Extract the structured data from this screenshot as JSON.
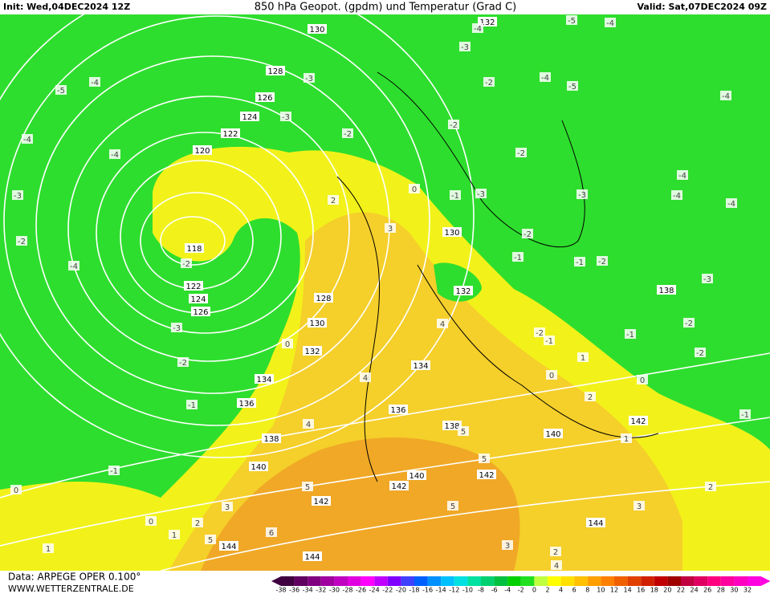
{
  "header": {
    "init": "Init: Wed,04DEC2024 12Z",
    "title": "850 hPa Geopot. (gpdm) und Temperatur (Grad C)",
    "valid": "Valid: Sat,07DEC2024 09Z"
  },
  "footer": {
    "data": "Data: ARPEGE OPER 0.100°",
    "site": "WWW.WETTERZENTRALE.DE"
  },
  "colorbar": {
    "ticks": [
      -38,
      -36,
      -34,
      -32,
      -30,
      -28,
      -26,
      -24,
      -22,
      -20,
      -18,
      -16,
      -14,
      -12,
      -10,
      -8,
      -6,
      -4,
      -2,
      0,
      2,
      4,
      6,
      8,
      10,
      12,
      14,
      16,
      18,
      20,
      22,
      24,
      26,
      28,
      30,
      32
    ],
    "colors": [
      "#400040",
      "#600060",
      "#800080",
      "#a000a0",
      "#c000c0",
      "#e000e0",
      "#ff00ff",
      "#c000ff",
      "#8000ff",
      "#4040ff",
      "#0060ff",
      "#0090ff",
      "#00c0ff",
      "#00e0e0",
      "#00e0a0",
      "#00d070",
      "#00c040",
      "#00d000",
      "#20e020",
      "#c0ff40",
      "#ffff00",
      "#ffe000",
      "#ffc000",
      "#ffa000",
      "#ff8000",
      "#f06000",
      "#e04000",
      "#d02000",
      "#c00000",
      "#a00000",
      "#c00040",
      "#e00060",
      "#ff0080",
      "#ff00a0",
      "#ff00c0",
      "#ff00e0"
    ]
  },
  "geopotential_labels": [
    130,
    128,
    126,
    124,
    122,
    120,
    118,
    122,
    124,
    126,
    128,
    130,
    132,
    134,
    136,
    138,
    140,
    130,
    132,
    134,
    136,
    138,
    140,
    142,
    142,
    142,
    140,
    142,
    138,
    144,
    144,
    144,
    132
  ],
  "temperature_labels": [
    -5,
    -4,
    -4,
    -3,
    -2,
    -4,
    -5,
    -4,
    -4,
    -5,
    -4,
    -3,
    -2,
    -4,
    -4,
    -3,
    -3,
    -2,
    -2,
    -2,
    -1,
    -3,
    -3,
    -4,
    -4,
    -4,
    -3,
    -2,
    -2,
    -1,
    -2,
    -1,
    -2,
    -1,
    -1,
    -3,
    -2,
    -1,
    -2,
    -1,
    -1,
    -2,
    0,
    0,
    0,
    0,
    0,
    0,
    1,
    1,
    1,
    1,
    2,
    2,
    2,
    2,
    3,
    3,
    3,
    3,
    4,
    4,
    4,
    5,
    5,
    5,
    5,
    5,
    6,
    2,
    4
  ]
}
